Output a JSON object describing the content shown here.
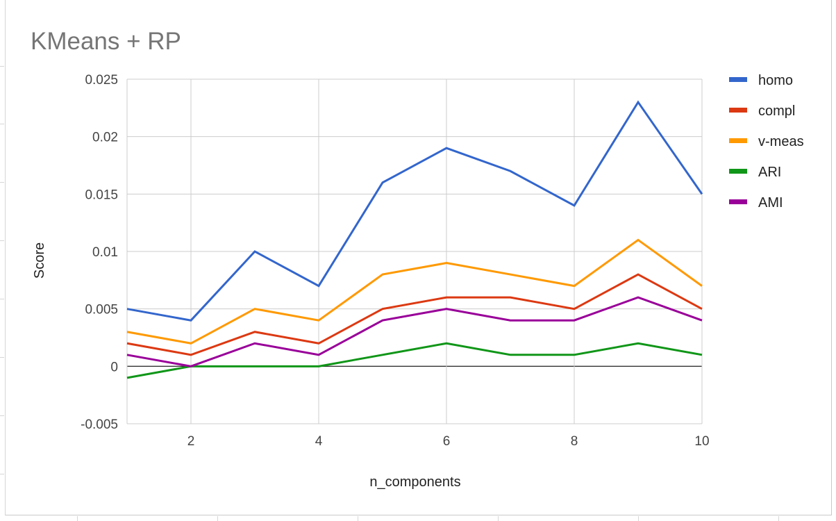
{
  "chart_data": {
    "type": "line",
    "title": "KMeans + RP",
    "xlabel": "n_components",
    "ylabel": "Score",
    "x": [
      1,
      2,
      3,
      4,
      5,
      6,
      7,
      8,
      9,
      10
    ],
    "xlim": [
      1,
      10
    ],
    "ylim": [
      -0.005,
      0.025
    ],
    "x_ticks": [
      2,
      4,
      6,
      8,
      10
    ],
    "y_ticks": [
      -0.005,
      0,
      0.005,
      0.01,
      0.015,
      0.02,
      0.025
    ],
    "x_tick_labels": [
      "2",
      "4",
      "6",
      "8",
      "10"
    ],
    "y_tick_labels": [
      "-0.005",
      "0",
      "0.005",
      "0.01",
      "0.015",
      "0.02",
      "0.025"
    ],
    "grid": true,
    "legend_position": "right",
    "series": [
      {
        "name": "homo",
        "color": "#3366cc",
        "values": [
          0.005,
          0.004,
          0.01,
          0.007,
          0.016,
          0.019,
          0.017,
          0.014,
          0.023,
          0.015
        ]
      },
      {
        "name": "compl",
        "color": "#dc3912",
        "values": [
          0.002,
          0.001,
          0.003,
          0.002,
          0.005,
          0.006,
          0.006,
          0.005,
          0.008,
          0.005
        ]
      },
      {
        "name": "v-meas",
        "color": "#ff9900",
        "values": [
          0.003,
          0.002,
          0.005,
          0.004,
          0.008,
          0.009,
          0.008,
          0.007,
          0.011,
          0.007
        ]
      },
      {
        "name": "ARI",
        "color": "#109618",
        "values": [
          -0.001,
          0.0,
          0.0,
          0.0,
          0.001,
          0.002,
          0.001,
          0.001,
          0.002,
          0.001
        ]
      },
      {
        "name": "AMI",
        "color": "#990099",
        "values": [
          0.001,
          0.0,
          0.002,
          0.001,
          0.004,
          0.005,
          0.004,
          0.004,
          0.006,
          0.004
        ]
      }
    ]
  }
}
